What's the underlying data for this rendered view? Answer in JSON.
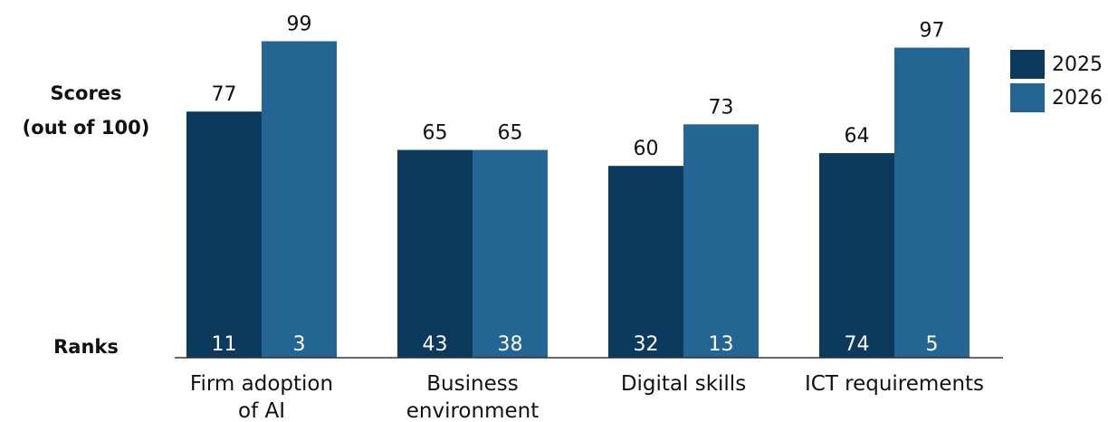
{
  "side_labels": {
    "scores_line1": "Scores",
    "scores_line2": "(out of 100)",
    "ranks": "Ranks"
  },
  "chart_data": {
    "type": "bar",
    "categories": [
      [
        "Firm adoption",
        "of AI"
      ],
      [
        "Business",
        "environment"
      ],
      [
        "Digital skills"
      ],
      [
        "ICT requirements"
      ]
    ],
    "series": [
      {
        "name": "2025",
        "color": "#0b3a5c",
        "values": [
          77,
          65,
          60,
          64
        ],
        "ranks": [
          "11",
          "43",
          "32",
          "74"
        ]
      },
      {
        "name": "2026",
        "color": "#246593",
        "values": [
          99,
          65,
          73,
          97
        ],
        "ranks": [
          "3",
          "38",
          "13",
          "5"
        ]
      }
    ],
    "ylim": [
      0,
      100
    ],
    "grid": false,
    "legend_position": "top-right"
  }
}
